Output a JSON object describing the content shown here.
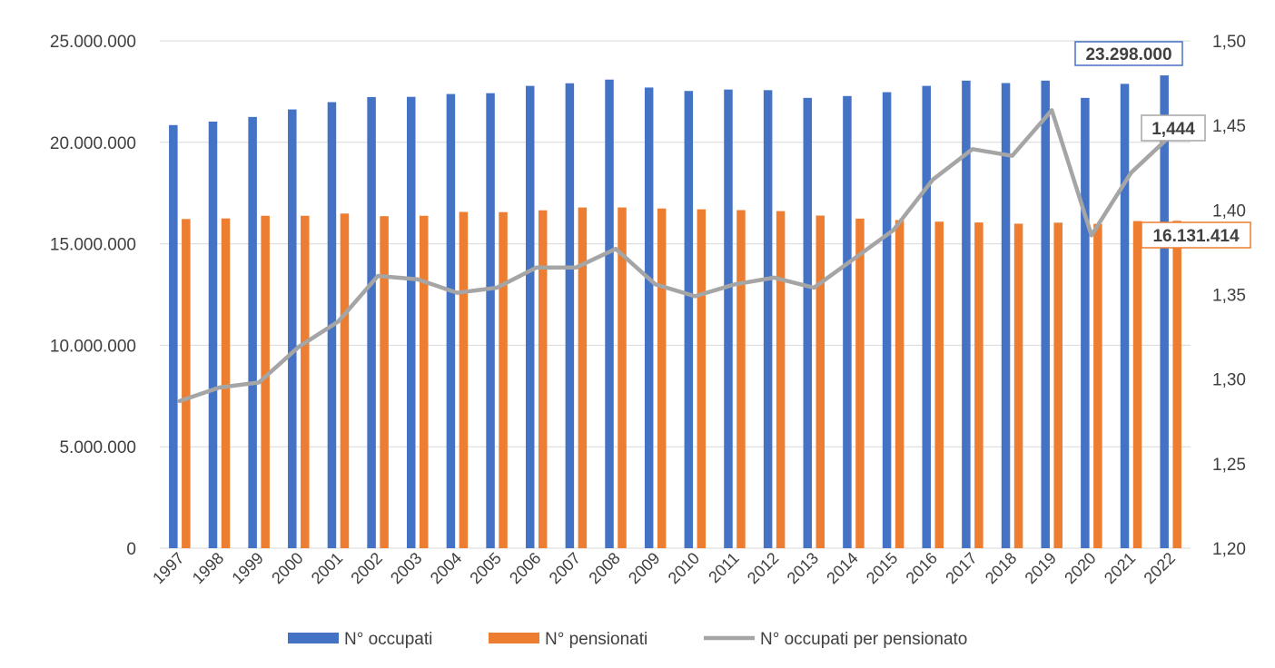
{
  "chart_data": {
    "type": "bar",
    "categories": [
      "1997",
      "1998",
      "1999",
      "2000",
      "2001",
      "2002",
      "2003",
      "2004",
      "2005",
      "2006",
      "2007",
      "2008",
      "2009",
      "2010",
      "2011",
      "2012",
      "2013",
      "2014",
      "2015",
      "2016",
      "2017",
      "2018",
      "2019",
      "2020",
      "2021",
      "2022"
    ],
    "series": [
      {
        "name": "N° occupati",
        "type": "bar",
        "axis": "left",
        "color": "#4472C4",
        "values": [
          20850000,
          21020000,
          21250000,
          21620000,
          21980000,
          22230000,
          22240000,
          22380000,
          22420000,
          22780000,
          22910000,
          23090000,
          22700000,
          22530000,
          22600000,
          22570000,
          22190000,
          22280000,
          22470000,
          22780000,
          23040000,
          22920000,
          23040000,
          22190000,
          22880000,
          23298000
        ]
      },
      {
        "name": "N° pensionati",
        "type": "bar",
        "axis": "left",
        "color": "#ED7D31",
        "values": [
          16220000,
          16250000,
          16380000,
          16380000,
          16490000,
          16360000,
          16380000,
          16570000,
          16560000,
          16650000,
          16790000,
          16790000,
          16740000,
          16700000,
          16660000,
          16610000,
          16390000,
          16240000,
          16170000,
          16090000,
          16050000,
          15990000,
          16040000,
          15980000,
          16120000,
          16131414
        ]
      },
      {
        "name": "N° occupati per pensionato",
        "type": "line",
        "axis": "right",
        "color": "#A5A5A5",
        "values": [
          1.287,
          1.295,
          1.298,
          1.319,
          1.334,
          1.361,
          1.359,
          1.351,
          1.354,
          1.366,
          1.366,
          1.377,
          1.356,
          1.349,
          1.356,
          1.36,
          1.354,
          1.371,
          1.388,
          1.418,
          1.436,
          1.432,
          1.459,
          1.385,
          1.422,
          1.444
        ]
      }
    ],
    "left_axis": {
      "min": 0,
      "max": 25000000,
      "ticks": [
        0,
        5000000,
        10000000,
        15000000,
        20000000,
        25000000
      ],
      "tick_labels": [
        "0",
        "5.000.000",
        "10.000.000",
        "15.000.000",
        "20.000.000",
        "25.000.000"
      ]
    },
    "right_axis": {
      "min": 1.2,
      "max": 1.5,
      "ticks": [
        1.2,
        1.25,
        1.3,
        1.35,
        1.4,
        1.45,
        1.5
      ],
      "tick_labels": [
        "1,20",
        "1,25",
        "1,30",
        "1,35",
        "1,40",
        "1,45",
        "1,50"
      ]
    },
    "grid": true,
    "legend_position": "bottom",
    "annotations": [
      {
        "series": 0,
        "index": 25,
        "text": "23.298.000",
        "border": "#4472C4"
      },
      {
        "series": 2,
        "index": 25,
        "text": "1,444",
        "border": "#A5A5A5"
      },
      {
        "series": 1,
        "index": 25,
        "text": "16.131.414",
        "border": "#ED7D31"
      }
    ]
  }
}
